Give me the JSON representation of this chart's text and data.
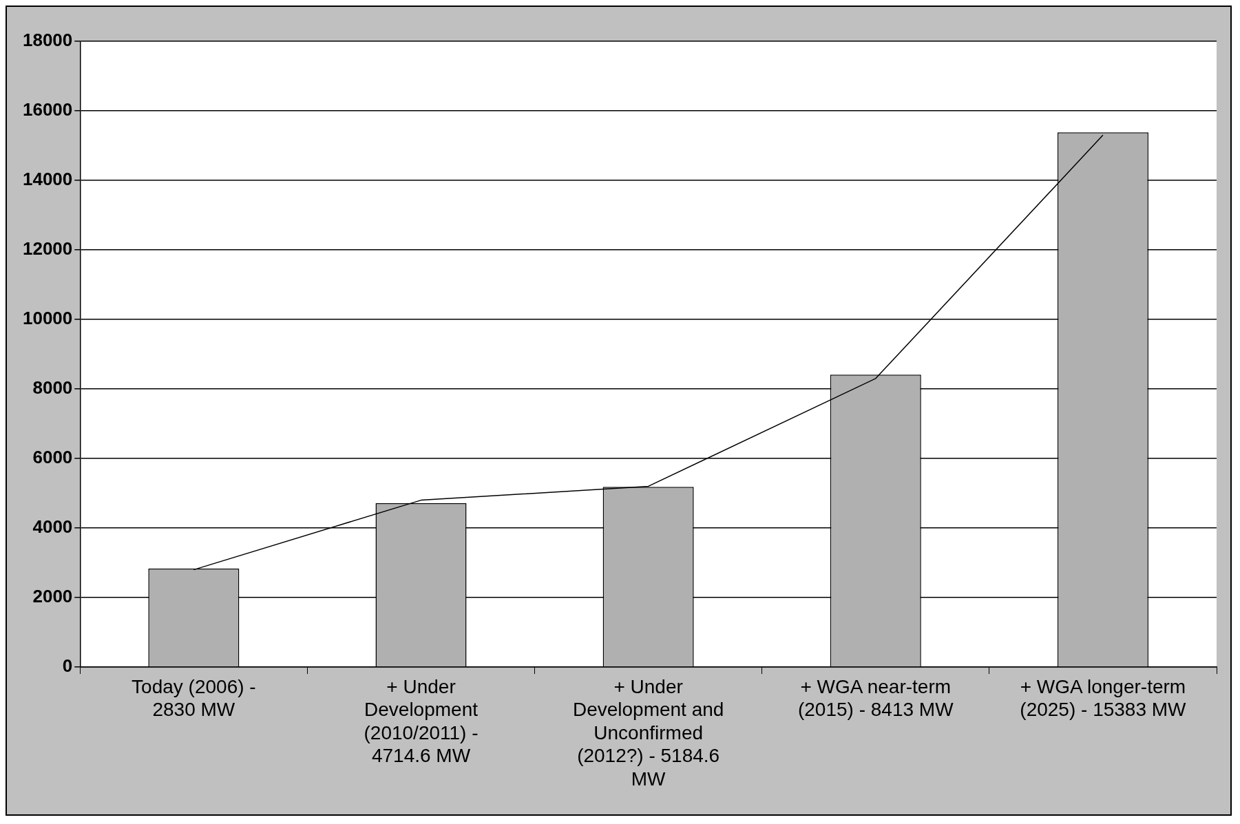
{
  "chart_data": {
    "type": "bar",
    "categories": [
      "Today (2006) - 2830 MW",
      "+ Under Development (2010/2011) - 4714.6 MW",
      "+ Under Development and Unconfirmed (2012?) - 5184.6 MW",
      "+ WGA near-term (2015) - 8413 MW",
      "+ WGA longer-term (2025) - 15383 MW"
    ],
    "series": [
      {
        "color": "#b0b0b0",
        "values": [
          2830,
          4714.6,
          5184.6,
          8413,
          15383
        ]
      },
      {
        "type": "line",
        "color": "#000000",
        "values": [
          2800,
          4800,
          5200,
          8300,
          15300
        ]
      }
    ],
    "ylim": [
      0,
      18000
    ],
    "yticks": [
      0,
      2000,
      4000,
      6000,
      8000,
      10000,
      12000,
      14000,
      16000,
      18000
    ],
    "grid": "y",
    "legend": false,
    "marker": "none",
    "line_style": "solid"
  }
}
